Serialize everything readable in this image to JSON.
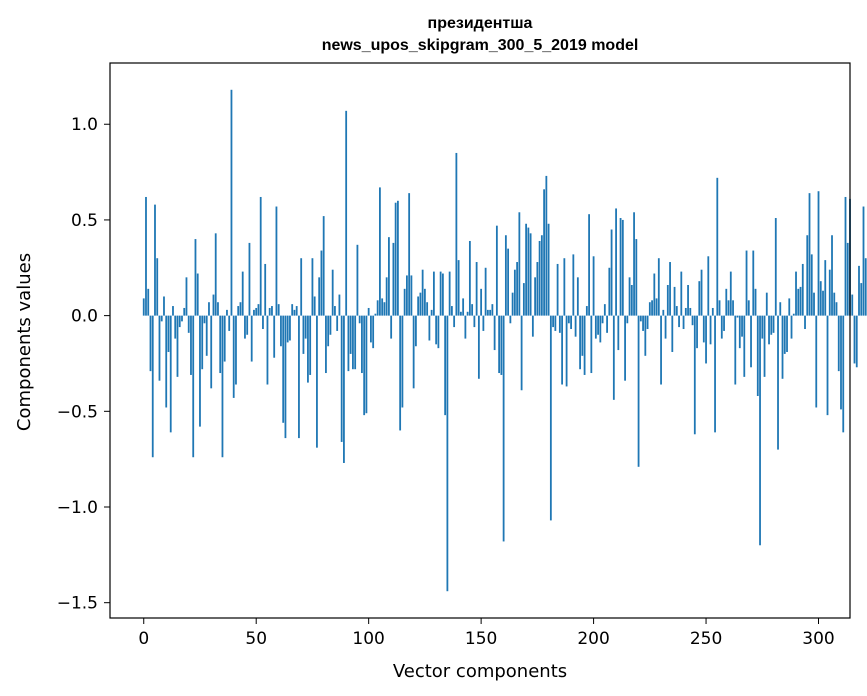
{
  "chart_data": {
    "type": "bar",
    "title": [
      "президентша",
      "news_upos_skipgram_300_5_2019 model"
    ],
    "xlabel": "Vector components",
    "ylabel": "Components values",
    "xlim": [
      -15,
      314
    ],
    "ylim": [
      -1.58,
      1.32
    ],
    "xticks": [
      0,
      50,
      100,
      150,
      200,
      250,
      300
    ],
    "xtick_labels": [
      "0",
      "50",
      "100",
      "150",
      "200",
      "250",
      "300"
    ],
    "yticks": [
      1.0,
      0.5,
      0.0,
      -0.5,
      -1.0,
      -1.5
    ],
    "ytick_labels": [
      "1.0",
      "0.5",
      "0.0",
      "−0.5",
      "−1.0",
      "−1.5"
    ],
    "bar_color": "#1f77b4",
    "grid": false,
    "series": [
      {
        "x_start": 0,
        "values": [
          0.09,
          0.62,
          0.14,
          -0.29,
          -0.74,
          0.58,
          0.3,
          -0.34,
          -0.03,
          0.1,
          -0.48,
          -0.19,
          -0.61,
          0.05,
          -0.12,
          -0.32,
          -0.06,
          -0.03,
          0.04,
          0.2,
          -0.09,
          -0.31,
          -0.74,
          0.4,
          0.22,
          -0.58,
          -0.28,
          -0.04,
          -0.21,
          0.07,
          -0.38,
          0.11,
          0.43,
          0.07,
          -0.3,
          -0.74,
          -0.24,
          0.03,
          -0.08,
          1.18,
          -0.43,
          -0.36,
          0.05,
          0.07,
          0.23,
          -0.12,
          -0.1,
          0.38,
          -0.24,
          0.03,
          0.04,
          0.06,
          0.62,
          -0.07,
          0.27,
          -0.36,
          0.04,
          0.05,
          -0.22,
          0.57,
          0.06,
          -0.16,
          -0.56,
          -0.64,
          -0.14,
          -0.13,
          0.06,
          0.03,
          0.05,
          -0.64,
          0.3,
          -0.2,
          -0.12,
          -0.35,
          -0.31,
          0.3,
          0.1,
          -0.69,
          0.2,
          0.34,
          0.52,
          -0.3,
          -0.16,
          -0.1,
          0.24,
          0.05,
          -0.08,
          0.11,
          -0.66,
          -0.77,
          1.07,
          -0.29,
          -0.2,
          -0.28,
          -0.28,
          0.37,
          -0.04,
          -0.3,
          -0.52,
          -0.51,
          0.04,
          -0.14,
          -0.17,
          0.01,
          0.08,
          0.67,
          0.09,
          0.07,
          0.2,
          0.41,
          -0.12,
          0.38,
          0.59,
          0.6,
          -0.6,
          -0.48,
          0.14,
          0.21,
          0.64,
          0.21,
          -0.38,
          -0.16,
          0.1,
          0.12,
          0.24,
          0.14,
          0.07,
          -0.13,
          0.03,
          0.23,
          -0.15,
          -0.17,
          0.23,
          0.22,
          -0.52,
          -1.44,
          0.23,
          0.05,
          -0.06,
          0.85,
          0.29,
          0.02,
          0.09,
          -0.12,
          0.02,
          0.39,
          0.06,
          -0.06,
          0.28,
          -0.33,
          0.14,
          -0.08,
          0.25,
          0.03,
          0.03,
          0.06,
          -0.18,
          0.47,
          -0.3,
          -0.31,
          -1.18,
          0.42,
          0.35,
          -0.04,
          0.12,
          0.24,
          0.28,
          0.54,
          -0.39,
          0.17,
          0.48,
          0.46,
          0.43,
          -0.11,
          0.2,
          0.28,
          0.39,
          0.42,
          0.66,
          0.73,
          0.48,
          -1.07,
          -0.06,
          -0.08,
          0.27,
          -0.09,
          -0.36,
          0.3,
          -0.37,
          -0.04,
          -0.07,
          0.32,
          -0.11,
          0.2,
          -0.28,
          -0.21,
          -0.31,
          0.05,
          0.53,
          -0.3,
          0.31,
          -0.12,
          -0.1,
          -0.14,
          -0.04,
          0.06,
          -0.09,
          0.25,
          0.45,
          -0.44,
          0.56,
          -0.18,
          0.51,
          0.5,
          -0.34,
          -0.04,
          0.2,
          0.16,
          0.54,
          0.4,
          -0.79,
          -0.03,
          -0.08,
          -0.21,
          -0.07,
          0.07,
          0.08,
          0.22,
          0.09,
          0.3,
          -0.36,
          0.03,
          -0.12,
          0.16,
          0.28,
          -0.19,
          0.15,
          0.05,
          -0.06,
          0.23,
          -0.07,
          0.04,
          0.16,
          0.04,
          -0.05,
          -0.62,
          -0.17,
          0.18,
          0.24,
          -0.14,
          -0.25,
          0.31,
          -0.15,
          0.04,
          -0.61,
          0.72,
          0.08,
          -0.12,
          -0.08,
          0.14,
          0.08,
          0.23,
          0.08,
          -0.36,
          -0.01,
          -0.17,
          -0.11,
          -0.32,
          0.34,
          0.08,
          -0.27,
          0.34,
          0.14,
          -0.42,
          -1.2,
          -0.12,
          -0.32,
          0.12,
          -0.15,
          -0.1,
          -0.09,
          0.51,
          -0.7,
          0.07,
          -0.33,
          -0.2,
          -0.19,
          0.09,
          -0.12,
          0.01,
          0.23,
          0.14,
          0.15,
          0.27,
          -0.07,
          0.42,
          0.64,
          0.32,
          0.12,
          -0.48,
          0.65,
          0.18,
          0.13,
          0.29,
          -0.52,
          0.24,
          0.42,
          0.12,
          0.07,
          -0.29,
          -0.49,
          -0.61,
          0.62,
          0.38,
          0.61,
          0.11,
          -0.25,
          -0.27,
          0.26,
          0.17,
          0.57,
          0.3
        ]
      }
    ]
  }
}
